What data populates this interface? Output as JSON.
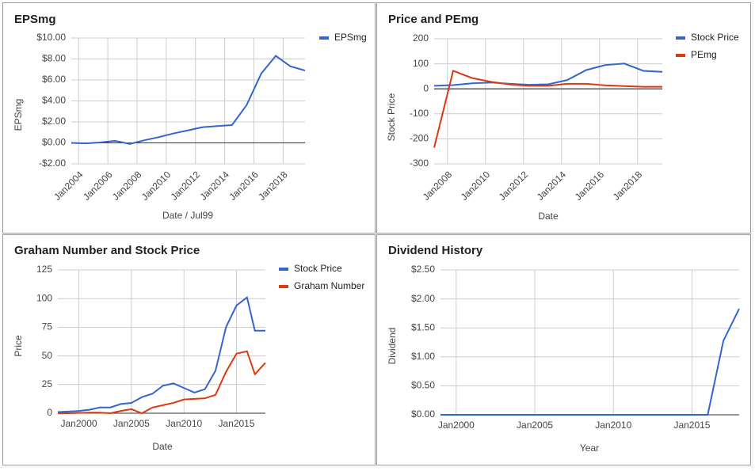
{
  "chart_data": [
    {
      "type": "line",
      "title": "EPSmg",
      "xlabel": "Date / Jul99",
      "ylabel": "EPSmg",
      "grid": true,
      "legend": "right",
      "x": [
        2003.5,
        2004.5,
        2005.5,
        2006.5,
        2007.5,
        2008.5,
        2009.5,
        2010.5,
        2011.5,
        2012.5,
        2013.5,
        2014.5,
        2015.5,
        2016.5,
        2017.5,
        2018.5,
        2019.5
      ],
      "series": [
        {
          "name": "EPSmg",
          "color": "#3366cc",
          "values": [
            0.0,
            -0.05,
            0.05,
            0.2,
            -0.1,
            0.25,
            0.55,
            0.9,
            1.2,
            1.5,
            1.6,
            1.7,
            3.6,
            6.6,
            8.3,
            7.3,
            6.9
          ]
        }
      ],
      "xlim": [
        2003.5,
        2019.5
      ],
      "xticks": [
        {
          "value": 2004,
          "label": "Jan2004"
        },
        {
          "value": 2006,
          "label": "Jan2006"
        },
        {
          "value": 2008,
          "label": "Jan2008"
        },
        {
          "value": 2010,
          "label": "Jan2010"
        },
        {
          "value": 2012,
          "label": "Jan2012"
        },
        {
          "value": 2014,
          "label": "Jan2014"
        },
        {
          "value": 2016,
          "label": "Jan2016"
        },
        {
          "value": 2018,
          "label": "Jan2018"
        }
      ],
      "ylim": [
        -2,
        10
      ],
      "yticks": [
        {
          "value": 10,
          "label": "$10.00"
        },
        {
          "value": 8,
          "label": "$8.00"
        },
        {
          "value": 6,
          "label": "$6.00"
        },
        {
          "value": 4,
          "label": "$4.00"
        },
        {
          "value": 2,
          "label": "$2.00"
        },
        {
          "value": 0,
          "label": "$0.00"
        },
        {
          "value": -2,
          "label": "-$2.00"
        }
      ]
    },
    {
      "type": "line",
      "title": "Price and PEmg",
      "xlabel": "Date",
      "ylabel": "Stock Price",
      "grid": true,
      "legend": "right",
      "x": [
        2007.3,
        2008.3,
        2009.3,
        2010.3,
        2011.3,
        2012.3,
        2013.3,
        2014.3,
        2015.3,
        2016.3,
        2017.3,
        2018.3,
        2019.3
      ],
      "series": [
        {
          "name": "Stock Price",
          "color": "#3366cc",
          "values": [
            12,
            15,
            22,
            25,
            20,
            16,
            18,
            35,
            75,
            95,
            101,
            72,
            68
          ]
        },
        {
          "name": "PEmg",
          "color": "#dc3912",
          "values": [
            -235,
            72,
            43,
            28,
            17,
            12,
            12,
            20,
            20,
            14,
            11,
            8,
            8
          ]
        }
      ],
      "xlim": [
        2007.3,
        2019.3
      ],
      "xticks": [
        {
          "value": 2008,
          "label": "Jan2008"
        },
        {
          "value": 2010,
          "label": "Jan2010"
        },
        {
          "value": 2012,
          "label": "Jan2012"
        },
        {
          "value": 2014,
          "label": "Jan2014"
        },
        {
          "value": 2016,
          "label": "Jan2016"
        },
        {
          "value": 2018,
          "label": "Jan2018"
        }
      ],
      "ylim": [
        -300,
        200
      ],
      "yticks": [
        200,
        100,
        0,
        -100,
        -200,
        -300
      ]
    },
    {
      "type": "line",
      "title": "Graham Number and Stock Price",
      "xlabel": "Date",
      "ylabel": "Price",
      "grid": true,
      "legend": "right",
      "x": [
        1998,
        1999,
        2000,
        2001,
        2002,
        2003,
        2004,
        2005,
        2006,
        2007,
        2008,
        2009,
        2010,
        2011,
        2012,
        2013,
        2014,
        2015,
        2016,
        2016.75,
        2017.75
      ],
      "series": [
        {
          "name": "Stock Price",
          "color": "#3366cc",
          "values": [
            1,
            1.5,
            2,
            3,
            5,
            5,
            8,
            9,
            14,
            17,
            24,
            26,
            22,
            18,
            21,
            37,
            75,
            94,
            101,
            72,
            72
          ]
        },
        {
          "name": "Graham Number",
          "color": "#dc3912",
          "values": [
            0,
            0,
            0.3,
            0.5,
            0.5,
            0,
            2,
            3.5,
            0,
            5,
            7,
            9,
            12,
            12.5,
            13,
            16,
            36,
            52,
            54,
            34,
            44
          ]
        }
      ],
      "xlim": [
        1998,
        2017.75
      ],
      "xticks": [
        {
          "value": 2000,
          "label": "Jan2000"
        },
        {
          "value": 2005,
          "label": "Jan2005"
        },
        {
          "value": 2010,
          "label": "Jan2010"
        },
        {
          "value": 2015,
          "label": "Jan2015"
        }
      ],
      "ylim": [
        0,
        125
      ],
      "yticks": [
        125,
        100,
        75,
        50,
        25,
        0
      ]
    },
    {
      "type": "line",
      "title": "Dividend History",
      "xlabel": "Year",
      "ylabel": "Dividend",
      "grid": true,
      "x": [
        1999,
        2000,
        2001,
        2002,
        2003,
        2004,
        2005,
        2006,
        2007,
        2008,
        2009,
        2010,
        2011,
        2012,
        2013,
        2014,
        2015,
        2016,
        2017,
        2018
      ],
      "series": [
        {
          "name": "Dividend",
          "color": "#3366cc",
          "values": [
            0,
            0,
            0,
            0,
            0,
            0,
            0,
            0,
            0,
            0,
            0,
            0,
            0,
            0,
            0,
            0,
            0,
            0,
            1.28,
            1.83
          ]
        }
      ],
      "xlim": [
        1999,
        2018
      ],
      "xticks": [
        {
          "value": 2000,
          "label": "Jan2000"
        },
        {
          "value": 2005,
          "label": "Jan2005"
        },
        {
          "value": 2010,
          "label": "Jan2010"
        },
        {
          "value": 2015,
          "label": "Jan2015"
        }
      ],
      "ylim": [
        0,
        2.5
      ],
      "yticks": [
        {
          "value": 2.5,
          "label": "$2.50"
        },
        {
          "value": 2,
          "label": "$2.00"
        },
        {
          "value": 1.5,
          "label": "$1.50"
        },
        {
          "value": 1,
          "label": "$1.00"
        },
        {
          "value": 0.5,
          "label": "$0.50"
        },
        {
          "value": 0,
          "label": "$0.00"
        }
      ]
    }
  ]
}
